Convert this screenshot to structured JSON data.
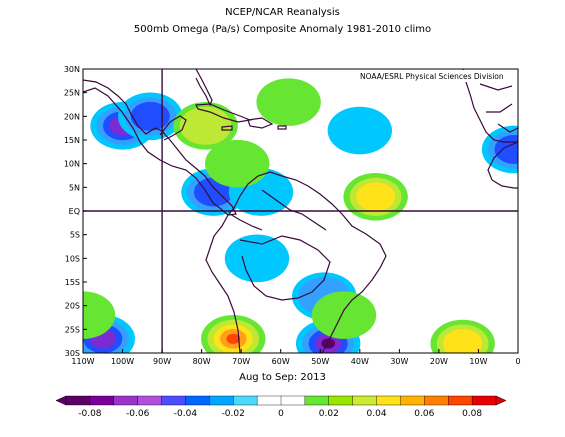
{
  "titles": {
    "line1": "NCEP/NCAR Reanalysis",
    "line2": "500mb Omega (Pa/s) Composite Anomaly 1981-2010 climo",
    "line3": ""
  },
  "credit": "NOAA/ESRL Physical Sciences Division",
  "period": "Aug to Sep: 2013",
  "map": {
    "projection": "cylindrical equidistant",
    "lon_range": [
      -110,
      0
    ],
    "lat_range": [
      -30,
      30
    ],
    "lat_ticks": [
      "30N",
      "25N",
      "20N",
      "15N",
      "10N",
      "5N",
      "EQ",
      "5S",
      "10S",
      "15S",
      "20S",
      "25S",
      "30S"
    ],
    "lon_ticks": [
      "110W",
      "100W",
      "90W",
      "80W",
      "70W",
      "60W",
      "50W",
      "40W",
      "30W",
      "20W",
      "10W",
      "0"
    ],
    "reference_lines": [
      "Equator",
      "90W meridian"
    ]
  },
  "colorbar": {
    "labels": [
      "-0.08",
      "-0.06",
      "-0.04",
      "-0.02",
      "0",
      "0.02",
      "0.04",
      "0.06",
      "0.08"
    ],
    "colors": [
      "#5c0066",
      "#7a0099",
      "#9933cc",
      "#b34ddb",
      "#4d4dff",
      "#0066ff",
      "#00a6ff",
      "#4dd9ff",
      "#ffffff",
      "#ffffff",
      "#66e633",
      "#99e600",
      "#ccec33",
      "#ffe21a",
      "#ffb300",
      "#ff7f00",
      "#ff4500",
      "#e60000"
    ]
  },
  "anomaly_fields": [
    {
      "sign": "negative",
      "lon": -100,
      "lat": 18,
      "level": -0.06
    },
    {
      "sign": "negative",
      "lon": -93,
      "lat": 20,
      "level": -0.05
    },
    {
      "sign": "negative",
      "lon": -77,
      "lat": 4,
      "level": -0.04
    },
    {
      "sign": "negative",
      "lon": -65,
      "lat": 4,
      "level": -0.02
    },
    {
      "sign": "negative",
      "lon": -49,
      "lat": -18,
      "level": -0.03
    },
    {
      "sign": "negative",
      "lon": -40,
      "lat": 17,
      "level": -0.01
    },
    {
      "sign": "negative",
      "lon": -1,
      "lat": 13,
      "level": -0.04
    },
    {
      "sign": "negative",
      "lon": -105,
      "lat": -27,
      "level": -0.06
    },
    {
      "sign": "negative",
      "lon": -48,
      "lat": -28,
      "level": -0.07
    },
    {
      "sign": "negative",
      "lon": -66,
      "lat": -10,
      "level": -0.02
    },
    {
      "sign": "positive",
      "lon": -79,
      "lat": 18,
      "level": 0.03
    },
    {
      "sign": "positive",
      "lon": -58,
      "lat": 23,
      "level": 0.02
    },
    {
      "sign": "positive",
      "lon": -36,
      "lat": 3,
      "level": 0.04
    },
    {
      "sign": "positive",
      "lon": -44,
      "lat": -22,
      "level": 0.02
    },
    {
      "sign": "positive",
      "lon": -72,
      "lat": -27,
      "level": 0.07
    },
    {
      "sign": "positive",
      "lon": -14,
      "lat": -28,
      "level": 0.05
    },
    {
      "sign": "positive",
      "lon": -110,
      "lat": -22,
      "level": 0.02
    },
    {
      "sign": "positive",
      "lon": -71,
      "lat": 10,
      "level": 0.02
    }
  ]
}
